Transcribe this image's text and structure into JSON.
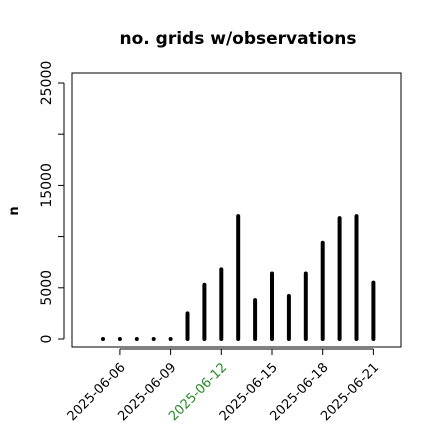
{
  "chart_data": {
    "type": "bar",
    "title": "no. grids w/observations",
    "xlabel": "",
    "ylabel": "n",
    "ylim": [
      0,
      25000
    ],
    "y_ticks": [
      0,
      5000,
      15000,
      25000
    ],
    "x_tick_labels": [
      "2025-06-06",
      "2025-06-09",
      "2025-06-12",
      "2025-06-15",
      "2025-06-18",
      "2025-06-21"
    ],
    "x_tick_label_colors": [
      "#000000",
      "#000000",
      "#228B22",
      "#000000",
      "#000000",
      "#000000"
    ],
    "x": [
      "2025-06-05",
      "2025-06-06",
      "2025-06-07",
      "2025-06-08",
      "2025-06-09",
      "2025-06-10",
      "2025-06-11",
      "2025-06-12",
      "2025-06-13",
      "2025-06-14",
      "2025-06-15",
      "2025-06-16",
      "2025-06-17",
      "2025-06-18",
      "2025-06-19",
      "2025-06-20",
      "2025-06-21"
    ],
    "values": [
      50,
      50,
      50,
      50,
      50,
      2500,
      5300,
      6800,
      12000,
      3800,
      6400,
      4200,
      6400,
      9400,
      11800,
      12000,
      5500
    ],
    "grid": false,
    "bar_color": "#000000"
  }
}
